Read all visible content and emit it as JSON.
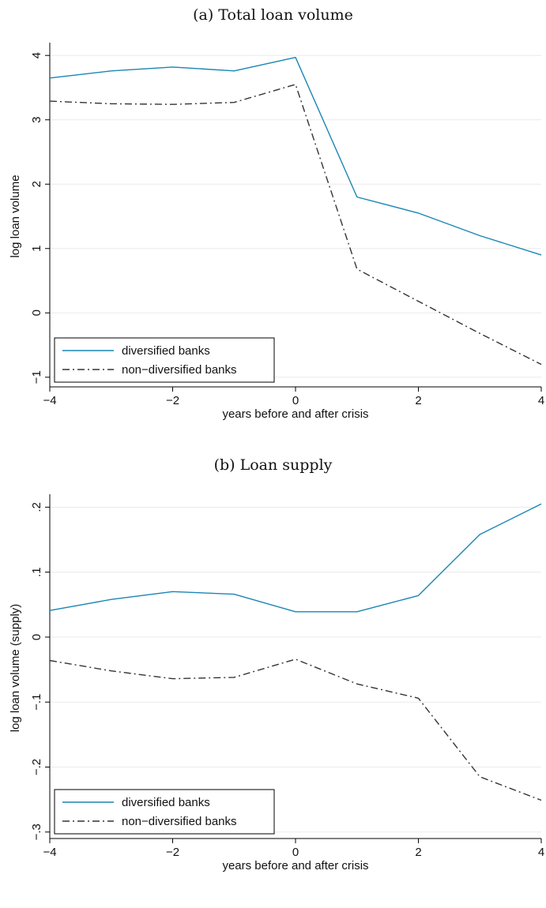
{
  "chart_data": [
    {
      "type": "line",
      "title": "(a) Total loan volume",
      "xlabel": "years before and after crisis",
      "ylabel": "log loan volume",
      "x": [
        -4,
        -3,
        -2,
        -1,
        0,
        1,
        2,
        3,
        4
      ],
      "xlim": [
        -4,
        4
      ],
      "ylim": [
        -1.15,
        4.15
      ],
      "xticks": [
        -4,
        -2,
        0,
        2,
        4
      ],
      "xtick_labels": [
        "−4",
        "−2",
        "0",
        "2",
        "4"
      ],
      "yticks": [
        -1,
        0,
        1,
        2,
        3,
        4
      ],
      "ytick_labels": [
        "−1",
        "0",
        "1",
        "2",
        "3",
        "4"
      ],
      "grid": true,
      "legend_position": "bottom-left",
      "series": [
        {
          "name": "diversified banks",
          "color": "#1a86b4",
          "style": "solid",
          "values": [
            3.65,
            3.76,
            3.82,
            3.76,
            3.97,
            1.8,
            1.55,
            1.2,
            0.9
          ]
        },
        {
          "name": "non−diversified banks",
          "color": "#333333",
          "style": "dashdot",
          "values": [
            3.29,
            3.25,
            3.24,
            3.27,
            3.55,
            0.68,
            0.18,
            -0.32,
            -0.8
          ]
        }
      ]
    },
    {
      "type": "line",
      "title": "(b) Loan supply",
      "xlabel": "years before and after crisis",
      "ylabel": "log loan volume (supply)",
      "x": [
        -4,
        -3,
        -2,
        -1,
        0,
        1,
        2,
        3,
        4
      ],
      "xlim": [
        -4,
        4
      ],
      "ylim": [
        -0.31,
        0.215
      ],
      "xticks": [
        -4,
        -2,
        0,
        2,
        4
      ],
      "xtick_labels": [
        "−4",
        "−2",
        "0",
        "2",
        "4"
      ],
      "yticks": [
        -0.3,
        -0.2,
        -0.1,
        0,
        0.1,
        0.2
      ],
      "ytick_labels": [
        "−.3",
        "−.2",
        "−.1",
        "0",
        ".1",
        ".2"
      ],
      "grid": true,
      "legend_position": "bottom-left",
      "series": [
        {
          "name": "diversified banks",
          "color": "#1a86b4",
          "style": "solid",
          "values": [
            0.041,
            0.058,
            0.07,
            0.066,
            0.039,
            0.039,
            0.064,
            0.158,
            0.205
          ]
        },
        {
          "name": "non−diversified banks",
          "color": "#333333",
          "style": "dashdot",
          "values": [
            -0.036,
            -0.052,
            -0.064,
            -0.062,
            -0.034,
            -0.072,
            -0.094,
            -0.215,
            -0.251
          ]
        }
      ]
    }
  ]
}
